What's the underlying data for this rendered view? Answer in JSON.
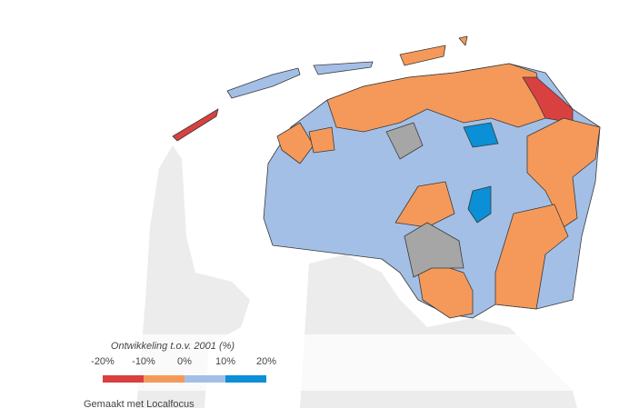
{
  "legend": {
    "title": "Ontwikkeling t.o.v. 2001 (%)",
    "ticks": [
      {
        "value": -20,
        "label": "-20%"
      },
      {
        "value": -10,
        "label": "-10%"
      },
      {
        "value": 0,
        "label": "0%"
      },
      {
        "value": 10,
        "label": "10%"
      },
      {
        "value": 20,
        "label": "20%"
      }
    ],
    "colors": [
      "#d94040",
      "#f5995a",
      "#a4bfe6",
      "#0b8fd6"
    ]
  },
  "credit": "Gemaakt met Localfocus"
}
